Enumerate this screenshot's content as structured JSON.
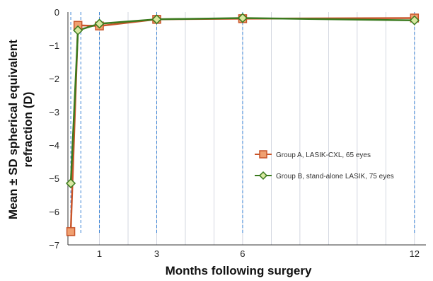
{
  "chart_data": {
    "type": "line",
    "xlabel": "Months following surgery",
    "ylabel": "Mean ± SD spherical equivalent refraction (D)",
    "ylabel_lines": [
      "Mean ± SD spherical equivalent",
      "refraction (D)"
    ],
    "xlim": [
      -0.1,
      12.4
    ],
    "ylim": [
      -7,
      0
    ],
    "xticks": [
      1,
      3,
      6,
      12
    ],
    "yticks": [
      0,
      -1,
      -2,
      -3,
      -4,
      -5,
      -6,
      -7
    ],
    "grid": "vertical",
    "legend_position": "center-right",
    "colors": {
      "series_a": "#c8552a",
      "series_a_fill": "#f0a070",
      "series_b": "#3a7a1e",
      "series_b_fill": "#d8e8a0",
      "guide": "#3f86d6",
      "grid": "#c8ccd8"
    },
    "series": [
      {
        "name": "Group A, LASIK-CXL, 65 eyes",
        "marker": "square",
        "x": [
          0,
          0.25,
          1,
          3,
          6,
          12
        ],
        "y": [
          -6.6,
          -0.4,
          -0.42,
          -0.22,
          -0.2,
          -0.18
        ]
      },
      {
        "name": "Group B, stand-alone LASIK, 75 eyes",
        "marker": "diamond",
        "x": [
          0,
          0.25,
          1,
          3,
          6,
          12
        ],
        "y": [
          -5.15,
          -0.55,
          -0.35,
          -0.22,
          -0.18,
          -0.25
        ]
      }
    ],
    "guide_lines_x": [
      0,
      0.35,
      1,
      3,
      6,
      12
    ]
  }
}
